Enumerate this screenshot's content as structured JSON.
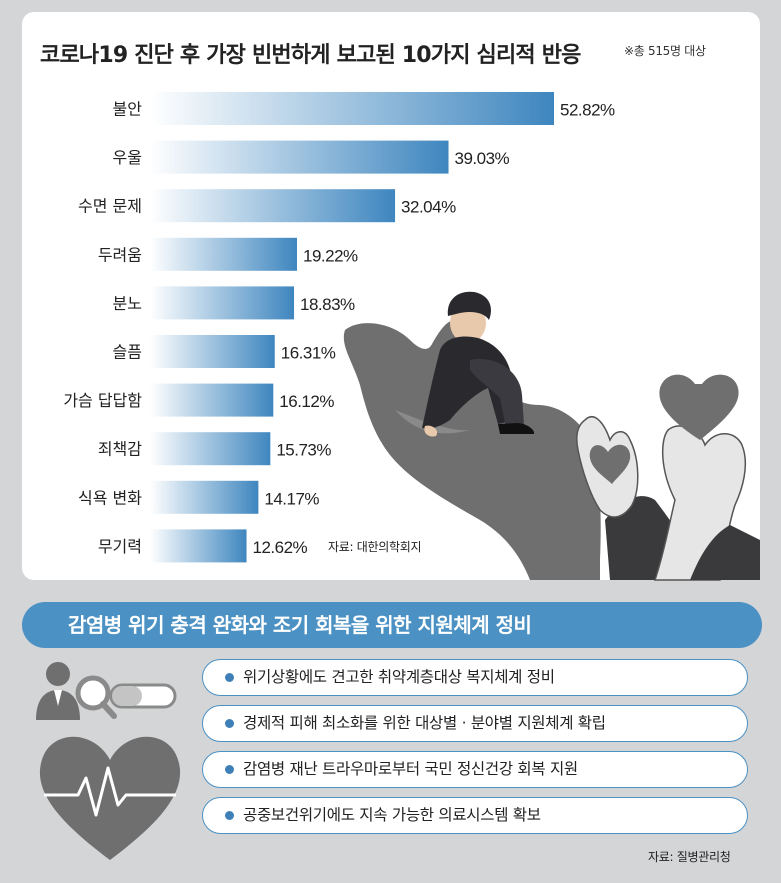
{
  "title": "코로나19 진단 후 가장 빈번하게 보고된 10가지 심리적 반응",
  "note": "※총 515명 대상",
  "source_chart": "자료: 대한의학회지",
  "chart_data": {
    "type": "bar",
    "orientation": "horizontal",
    "title": "코로나19 진단 후 가장 빈번하게 보고된 10가지 심리적 반응",
    "categories": [
      "불안",
      "우울",
      "수면 문제",
      "두려움",
      "분노",
      "슬픔",
      "가슴 답답함",
      "죄책감",
      "식욕 변화",
      "무기력"
    ],
    "values": [
      52.82,
      39.03,
      32.04,
      19.22,
      18.83,
      16.31,
      16.12,
      15.73,
      14.17,
      12.62
    ],
    "value_labels": [
      "52.82%",
      "39.03%",
      "32.04%",
      "19.22%",
      "18.83%",
      "16.31%",
      "16.12%",
      "15.73%",
      "14.17%",
      "12.62%"
    ],
    "xlim": [
      0,
      52.82
    ],
    "grid": false,
    "bar_gradient": [
      "#ffffff",
      "#3e86bf"
    ]
  },
  "banner": "감염병 위기 충격 완화와 조기 회복을 위한 지원체계 정비",
  "items": [
    "위기상황에도 견고한 취약계층대상 복지체계 정비",
    "경제적 피해 최소화를 위한 대상별 · 분야별 지원체계 확립",
    "감염병 재난 트라우마로부터 국민 정신건강 회복 지원",
    "공중보건위기에도 지속 가능한 의료시스템 확보"
  ],
  "source_bottom": "자료: 질병관리청",
  "colors": {
    "accent": "#4b91c4",
    "bar_end": "#3e86bf",
    "background": "#d4d5d6",
    "icon_gray": "#6f6f70"
  },
  "icons": [
    "person-sitting-illustration",
    "open-hand-illustration",
    "heart-in-hand-icon",
    "doctor-icon",
    "magnifier-icon",
    "pill-icon",
    "heartbeat-heart-icon"
  ]
}
